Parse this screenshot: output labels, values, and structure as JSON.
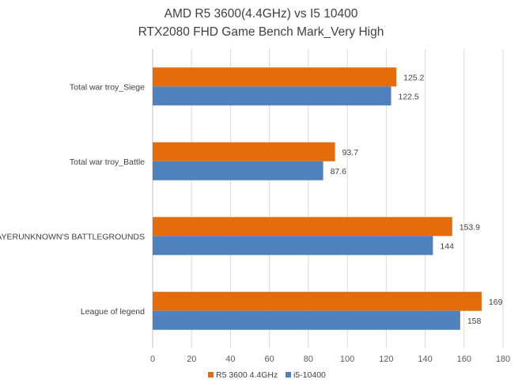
{
  "chart_data": {
    "type": "bar",
    "orientation": "horizontal",
    "title": "AMD R5 3600(4.4GHz) vs I5 10400",
    "subtitle": "RTX2080 FHD Game Bench Mark_Very High",
    "categories": [
      "Total war troy_Siege",
      "Total war troy_Battle",
      "PLAYERUNKNOWN'S BATTLEGROUNDS",
      "League of legend"
    ],
    "series": [
      {
        "name": "R5 3600 4.4GHz",
        "color": "#E46C0A",
        "values": [
          125.2,
          93.7,
          153.9,
          169
        ]
      },
      {
        "name": "i5-10400",
        "color": "#4F81BD",
        "values": [
          122.5,
          87.6,
          144,
          158
        ]
      }
    ],
    "xlim": [
      0,
      180
    ],
    "xticks": [
      0,
      20,
      40,
      60,
      80,
      100,
      120,
      140,
      160,
      180
    ],
    "grid": true,
    "legend_position": "bottom",
    "data_labels": true
  }
}
